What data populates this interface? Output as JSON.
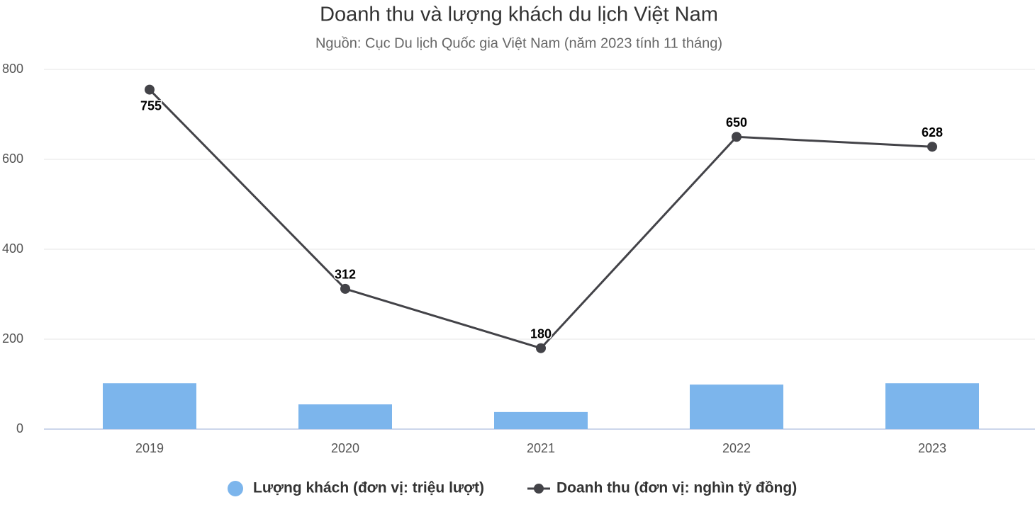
{
  "chart_data": {
    "type": "combo",
    "title": "Doanh thu và lượng khách du lịch Việt Nam",
    "subtitle": "Nguồn: Cục Du lịch Quốc gia Việt Nam (năm 2023 tính 11 tháng)",
    "categories": [
      "2019",
      "2020",
      "2021",
      "2022",
      "2023"
    ],
    "series": [
      {
        "name": "Lượng khách (đơn vị: triệu lượt)",
        "type": "bar",
        "color": "#7cb5ec",
        "values": [
          102,
          55,
          38,
          99,
          102
        ]
      },
      {
        "name": "Doanh thu (đơn vị: nghìn tỷ đồng)",
        "type": "line",
        "color": "#434348",
        "values": [
          755,
          312,
          180,
          650,
          628
        ],
        "data_labels": true
      }
    ],
    "ylim": [
      0,
      800
    ],
    "yticks": [
      0,
      200,
      400,
      600,
      800
    ],
    "grid": true,
    "legend": "bottom"
  }
}
